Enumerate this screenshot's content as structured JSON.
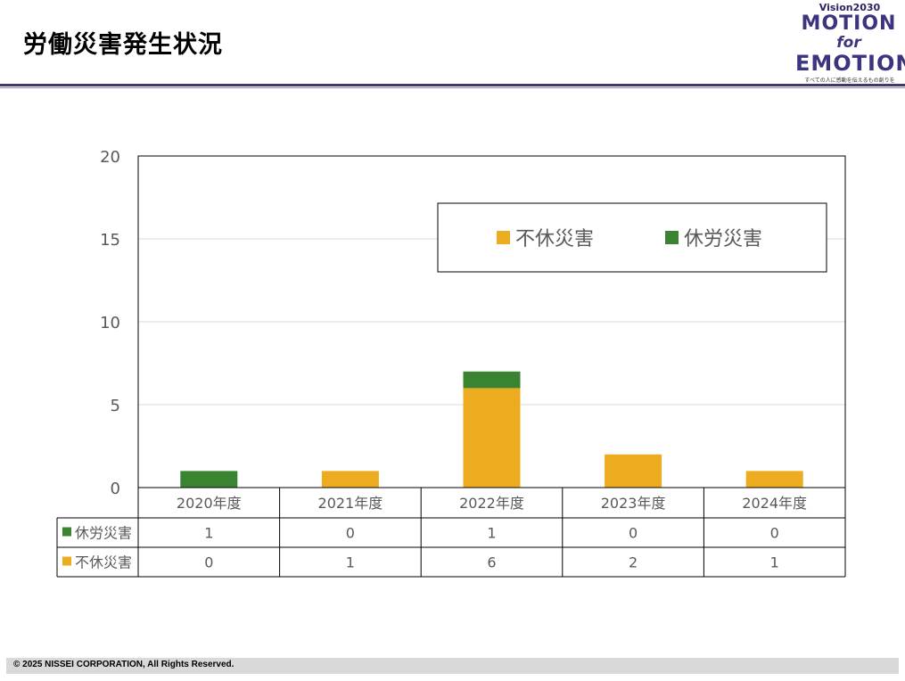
{
  "page": {
    "title": "労働災害発生状況",
    "footer": "© 2025 NISSEI CORPORATION, All Rights Reserved."
  },
  "logo": {
    "vision": "Vision2030",
    "line1": "MOTION",
    "line2": "for",
    "line3": "EMOTION",
    "tagline": "すべての人に感動を伝えるもの創りを"
  },
  "colors": {
    "title_rule": "#3d3a6e",
    "series_fukyu": "#EDAC20",
    "series_kyugyo": "#3A8331",
    "grid": "#D9D9D9",
    "axis_text": "#595959"
  },
  "chart_data": {
    "type": "bar",
    "stacked": true,
    "categories": [
      "2020年度",
      "2021年度",
      "2022年度",
      "2023年度",
      "2024年度"
    ],
    "series": [
      {
        "name": "不休災害",
        "color": "#EDAC20",
        "values": [
          0,
          1,
          6,
          2,
          1
        ]
      },
      {
        "name": "休労災害",
        "color": "#3A8331",
        "values": [
          1,
          0,
          1,
          0,
          0
        ]
      }
    ],
    "ylim": [
      0,
      20
    ],
    "yticks": [
      0,
      5,
      10,
      15,
      20
    ],
    "grid": true,
    "legend": "top-right",
    "data_table": {
      "rows": [
        {
          "name": "休労災害",
          "color": "#3A8331",
          "values": [
            1,
            0,
            1,
            0,
            0
          ]
        },
        {
          "name": "不休災害",
          "color": "#EDAC20",
          "values": [
            0,
            1,
            6,
            2,
            1
          ]
        }
      ]
    }
  }
}
